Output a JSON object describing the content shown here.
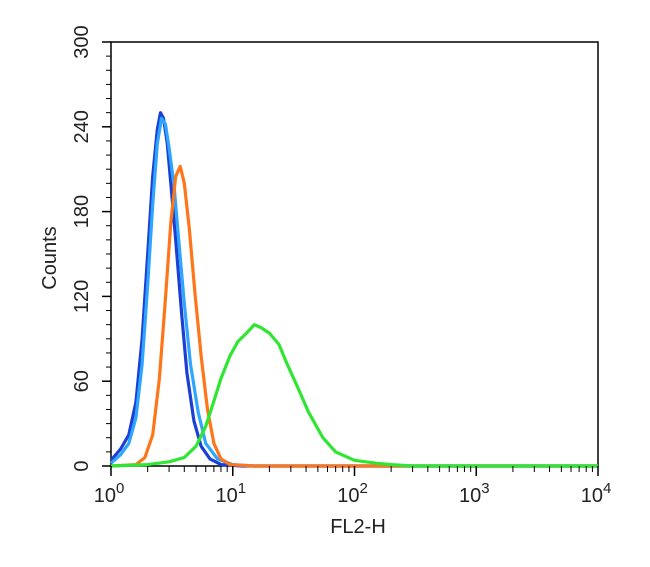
{
  "chart_data": {
    "type": "line",
    "title": "",
    "xlabel": "FL2-H",
    "ylabel": "Counts",
    "x_scale": "log",
    "xlim": [
      1,
      10000
    ],
    "ylim": [
      0,
      300
    ],
    "x_ticks": [
      {
        "value": 1,
        "base": "10",
        "exp": "0"
      },
      {
        "value": 10,
        "base": "10",
        "exp": "1"
      },
      {
        "value": 100,
        "base": "10",
        "exp": "2"
      },
      {
        "value": 1000,
        "base": "10",
        "exp": "3"
      },
      {
        "value": 10000,
        "base": "10",
        "exp": "4"
      }
    ],
    "y_ticks": [
      {
        "value": 0,
        "label": "0"
      },
      {
        "value": 60,
        "label": "60"
      },
      {
        "value": 120,
        "label": "120"
      },
      {
        "value": 180,
        "label": "180"
      },
      {
        "value": 240,
        "label": "240"
      },
      {
        "value": 300,
        "label": "300"
      }
    ],
    "grid": false,
    "legend": "none",
    "series": [
      {
        "color": "#1c3fd6",
        "points": [
          [
            1,
            4
          ],
          [
            1.2,
            12
          ],
          [
            1.4,
            22
          ],
          [
            1.6,
            45
          ],
          [
            1.8,
            90
          ],
          [
            2.0,
            150
          ],
          [
            2.2,
            205
          ],
          [
            2.4,
            238
          ],
          [
            2.55,
            250
          ],
          [
            2.7,
            246
          ],
          [
            2.9,
            228
          ],
          [
            3.1,
            200
          ],
          [
            3.4,
            160
          ],
          [
            3.8,
            108
          ],
          [
            4.2,
            66
          ],
          [
            4.8,
            32
          ],
          [
            5.5,
            14
          ],
          [
            6.5,
            5
          ],
          [
            8,
            1
          ],
          [
            12,
            0
          ],
          [
            10000,
            0
          ]
        ]
      },
      {
        "color": "#2ea6ff",
        "points": [
          [
            1,
            2
          ],
          [
            1.2,
            8
          ],
          [
            1.4,
            16
          ],
          [
            1.6,
            34
          ],
          [
            1.8,
            72
          ],
          [
            2.0,
            128
          ],
          [
            2.2,
            185
          ],
          [
            2.4,
            228
          ],
          [
            2.6,
            246
          ],
          [
            2.8,
            242
          ],
          [
            3.0,
            225
          ],
          [
            3.3,
            198
          ],
          [
            3.6,
            160
          ],
          [
            4.0,
            115
          ],
          [
            4.5,
            72
          ],
          [
            5.2,
            38
          ],
          [
            6.0,
            16
          ],
          [
            7.5,
            5
          ],
          [
            10,
            1
          ],
          [
            15,
            0
          ],
          [
            10000,
            0
          ]
        ]
      },
      {
        "color": "#ff7519",
        "points": [
          [
            1,
            0
          ],
          [
            1.6,
            1
          ],
          [
            1.9,
            6
          ],
          [
            2.2,
            22
          ],
          [
            2.5,
            62
          ],
          [
            2.8,
            118
          ],
          [
            3.1,
            172
          ],
          [
            3.4,
            205
          ],
          [
            3.7,
            212
          ],
          [
            4.0,
            200
          ],
          [
            4.4,
            168
          ],
          [
            4.9,
            122
          ],
          [
            5.5,
            78
          ],
          [
            6.2,
            40
          ],
          [
            7.0,
            16
          ],
          [
            8.0,
            5
          ],
          [
            9.5,
            1
          ],
          [
            15,
            0
          ],
          [
            10000,
            0
          ]
        ]
      },
      {
        "color": "#2fe632",
        "points": [
          [
            1,
            0
          ],
          [
            2,
            1
          ],
          [
            3,
            3
          ],
          [
            4,
            6
          ],
          [
            5,
            14
          ],
          [
            6,
            28
          ],
          [
            7,
            46
          ],
          [
            8,
            62
          ],
          [
            9.5,
            78
          ],
          [
            11,
            88
          ],
          [
            13,
            94
          ],
          [
            15,
            100
          ],
          [
            17,
            98
          ],
          [
            20,
            94
          ],
          [
            24,
            86
          ],
          [
            28,
            72
          ],
          [
            34,
            56
          ],
          [
            42,
            38
          ],
          [
            55,
            20
          ],
          [
            70,
            10
          ],
          [
            100,
            4
          ],
          [
            150,
            2
          ],
          [
            200,
            1
          ],
          [
            300,
            0
          ],
          [
            10000,
            0
          ]
        ]
      }
    ]
  }
}
